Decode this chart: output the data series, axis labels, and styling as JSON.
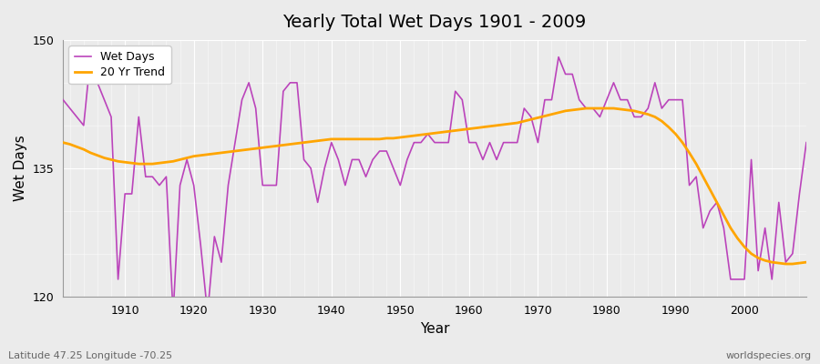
{
  "title": "Yearly Total Wet Days 1901 - 2009",
  "xlabel": "Year",
  "ylabel": "Wet Days",
  "subtitle": "Latitude 47.25 Longitude -70.25",
  "watermark": "worldspecies.org",
  "ylim": [
    120,
    150
  ],
  "xlim": [
    1901,
    2009
  ],
  "yticks": [
    120,
    135,
    150
  ],
  "bg_color": "#ebebeb",
  "line_color": "#bb44bb",
  "trend_color": "#ffa500",
  "wet_days": [
    143,
    142,
    141,
    140,
    148,
    145,
    143,
    141,
    122,
    132,
    132,
    141,
    134,
    134,
    133,
    134,
    118,
    133,
    136,
    133,
    126,
    118,
    127,
    124,
    133,
    138,
    143,
    145,
    142,
    133,
    133,
    133,
    144,
    145,
    145,
    136,
    135,
    131,
    135,
    138,
    136,
    133,
    136,
    136,
    134,
    136,
    137,
    137,
    135,
    133,
    136,
    138,
    138,
    139,
    138,
    138,
    138,
    144,
    143,
    138,
    138,
    136,
    138,
    136,
    138,
    138,
    138,
    142,
    141,
    138,
    143,
    143,
    148,
    146,
    146,
    143,
    142,
    142,
    141,
    143,
    145,
    143,
    143,
    141,
    141,
    142,
    145,
    142,
    143,
    143,
    143,
    133,
    134,
    128,
    130,
    131,
    128,
    122,
    122,
    122,
    136,
    123,
    128,
    122,
    131,
    124,
    125,
    132,
    138
  ],
  "years": [
    1901,
    1902,
    1903,
    1904,
    1905,
    1906,
    1907,
    1908,
    1909,
    1910,
    1911,
    1912,
    1913,
    1914,
    1915,
    1916,
    1917,
    1918,
    1919,
    1920,
    1921,
    1922,
    1923,
    1924,
    1925,
    1926,
    1927,
    1928,
    1929,
    1930,
    1931,
    1932,
    1933,
    1934,
    1935,
    1936,
    1937,
    1938,
    1939,
    1940,
    1941,
    1942,
    1943,
    1944,
    1945,
    1946,
    1947,
    1948,
    1949,
    1950,
    1951,
    1952,
    1953,
    1954,
    1955,
    1956,
    1957,
    1958,
    1959,
    1960,
    1961,
    1962,
    1963,
    1964,
    1965,
    1966,
    1967,
    1968,
    1969,
    1970,
    1971,
    1972,
    1973,
    1974,
    1975,
    1976,
    1977,
    1978,
    1979,
    1980,
    1981,
    1982,
    1983,
    1984,
    1985,
    1986,
    1987,
    1988,
    1989,
    1990,
    1991,
    1992,
    1993,
    1994,
    1995,
    1996,
    1997,
    1998,
    1999,
    2000,
    2001,
    2002,
    2003,
    2004,
    2005,
    2006,
    2007,
    2008,
    2009
  ],
  "trend_values": [
    138.0,
    137.8,
    137.5,
    137.2,
    136.8,
    136.5,
    136.2,
    136.0,
    135.8,
    135.7,
    135.6,
    135.5,
    135.5,
    135.5,
    135.6,
    135.7,
    135.8,
    136.0,
    136.2,
    136.4,
    136.5,
    136.6,
    136.7,
    136.8,
    136.9,
    137.0,
    137.1,
    137.2,
    137.3,
    137.4,
    137.5,
    137.6,
    137.7,
    137.8,
    137.9,
    138.0,
    138.1,
    138.2,
    138.3,
    138.4,
    138.4,
    138.4,
    138.4,
    138.4,
    138.4,
    138.4,
    138.4,
    138.5,
    138.5,
    138.6,
    138.7,
    138.8,
    138.9,
    139.0,
    139.1,
    139.2,
    139.3,
    139.4,
    139.5,
    139.6,
    139.7,
    139.8,
    139.9,
    140.0,
    140.1,
    140.2,
    140.3,
    140.5,
    140.7,
    140.9,
    141.1,
    141.3,
    141.5,
    141.7,
    141.8,
    141.9,
    142.0,
    142.0,
    142.0,
    142.0,
    142.0,
    141.9,
    141.8,
    141.7,
    141.5,
    141.3,
    141.0,
    140.5,
    139.8,
    139.0,
    138.0,
    136.8,
    135.5,
    134.0,
    132.5,
    131.0,
    129.5,
    128.0,
    126.8,
    125.8,
    125.0,
    124.5,
    124.2,
    124.0,
    123.9,
    123.8,
    123.8,
    123.9,
    124.0
  ]
}
